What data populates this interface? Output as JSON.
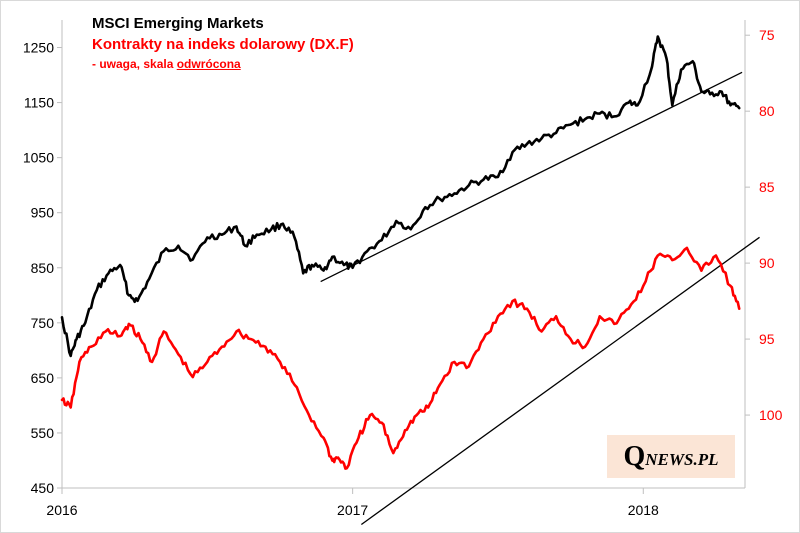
{
  "chart_data": {
    "type": "line",
    "title": "MSCI Emerging Markets",
    "subtitle": "Kontrakty na indeks dolarowy (DX.F)",
    "note_prefix": "- uwaga, skala ",
    "note_underlined": "odwrócona",
    "watermark_q": "Q",
    "watermark_rest": "NEWS.PL",
    "colors": {
      "msci": "#000000",
      "dxf": "#ff0000",
      "axis_right": "#ff0000",
      "watermark_bg": "#fbe5d6"
    },
    "x_axis": {
      "min": 2016.0,
      "max": 2018.35,
      "ticks": [
        "2016",
        "2017",
        "2018"
      ]
    },
    "y_left": {
      "min": 450,
      "max": 1300,
      "ticks": [
        "1250",
        "1150",
        "1050",
        "950",
        "850",
        "750",
        "650",
        "550",
        "450"
      ]
    },
    "y_right": {
      "min": 74,
      "max": 104.8,
      "reversed": true,
      "ticks": [
        "75",
        "80",
        "85",
        "90",
        "95",
        "100"
      ]
    },
    "series": [
      {
        "name": "MSCI Emerging Markets",
        "axis": "left",
        "x": [
          2016.0,
          2016.03,
          2016.05,
          2016.08,
          2016.12,
          2016.16,
          2016.2,
          2016.23,
          2016.26,
          2016.3,
          2016.35,
          2016.4,
          2016.45,
          2016.5,
          2016.55,
          2016.6,
          2016.63,
          2016.67,
          2016.72,
          2016.76,
          2016.8,
          2016.83,
          2016.86,
          2016.9,
          2016.93,
          2016.97,
          2017.0,
          2017.05,
          2017.1,
          2017.15,
          2017.2,
          2017.25,
          2017.3,
          2017.35,
          2017.4,
          2017.45,
          2017.5,
          2017.55,
          2017.6,
          2017.65,
          2017.7,
          2017.75,
          2017.8,
          2017.85,
          2017.9,
          2017.95,
          2017.98,
          2018.03,
          2018.05,
          2018.08,
          2018.1,
          2018.13,
          2018.17,
          2018.2,
          2018.23,
          2018.27,
          2018.3,
          2018.33
        ],
        "values": [
          760,
          690,
          720,
          750,
          810,
          840,
          855,
          800,
          790,
          830,
          880,
          890,
          865,
          905,
          910,
          925,
          890,
          910,
          920,
          930,
          905,
          840,
          855,
          845,
          870,
          855,
          850,
          880,
          900,
          935,
          920,
          960,
          975,
          985,
          1000,
          1010,
          1015,
          1060,
          1075,
          1085,
          1095,
          1110,
          1120,
          1130,
          1125,
          1150,
          1145,
          1215,
          1270,
          1230,
          1145,
          1210,
          1225,
          1170,
          1165,
          1170,
          1145,
          1140
        ]
      },
      {
        "name": "Kontrakty na indeks dolarowy (DX.F)",
        "axis": "right",
        "x": [
          2016.0,
          2016.03,
          2016.06,
          2016.1,
          2016.15,
          2016.2,
          2016.23,
          2016.27,
          2016.31,
          2016.35,
          2016.4,
          2016.45,
          2016.5,
          2016.55,
          2016.6,
          2016.65,
          2016.7,
          2016.75,
          2016.8,
          2016.85,
          2016.9,
          2016.93,
          2016.95,
          2016.98,
          2017.02,
          2017.06,
          2017.1,
          2017.14,
          2017.18,
          2017.22,
          2017.26,
          2017.3,
          2017.35,
          2017.4,
          2017.45,
          2017.5,
          2017.55,
          2017.6,
          2017.65,
          2017.7,
          2017.75,
          2017.8,
          2017.85,
          2017.9,
          2017.95,
          2018.0,
          2018.05,
          2018.1,
          2018.15,
          2018.2,
          2018.25,
          2018.3,
          2018.33
        ],
        "values": [
          99,
          99.5,
          96.5,
          95.5,
          94.5,
          94.8,
          94.0,
          95.0,
          96.5,
          94.5,
          96.0,
          97.5,
          96.5,
          95.5,
          94.5,
          95.0,
          95.5,
          96.5,
          98.0,
          100.0,
          101.5,
          103.0,
          102.8,
          103.5,
          101.5,
          100.0,
          100.5,
          102.5,
          101.0,
          100.0,
          99.5,
          98.0,
          96.5,
          96.8,
          95.0,
          93.5,
          92.5,
          93.0,
          94.5,
          93.5,
          95.0,
          95.5,
          93.5,
          94.0,
          93.0,
          91.5,
          89.5,
          89.8,
          89.0,
          90.5,
          89.5,
          91.5,
          93.0
        ]
      }
    ],
    "trendlines": [
      {
        "series": "MSCI Emerging Markets",
        "axis": "left",
        "x": [
          2016.89,
          2018.34
        ],
        "y": [
          825,
          1205
        ]
      },
      {
        "series": "Kontrakty na indeks dolarowy (DX.F)",
        "axis": "right",
        "x": [
          2017.03,
          2018.4
        ],
        "y": [
          107.2,
          88.3
        ]
      }
    ]
  }
}
